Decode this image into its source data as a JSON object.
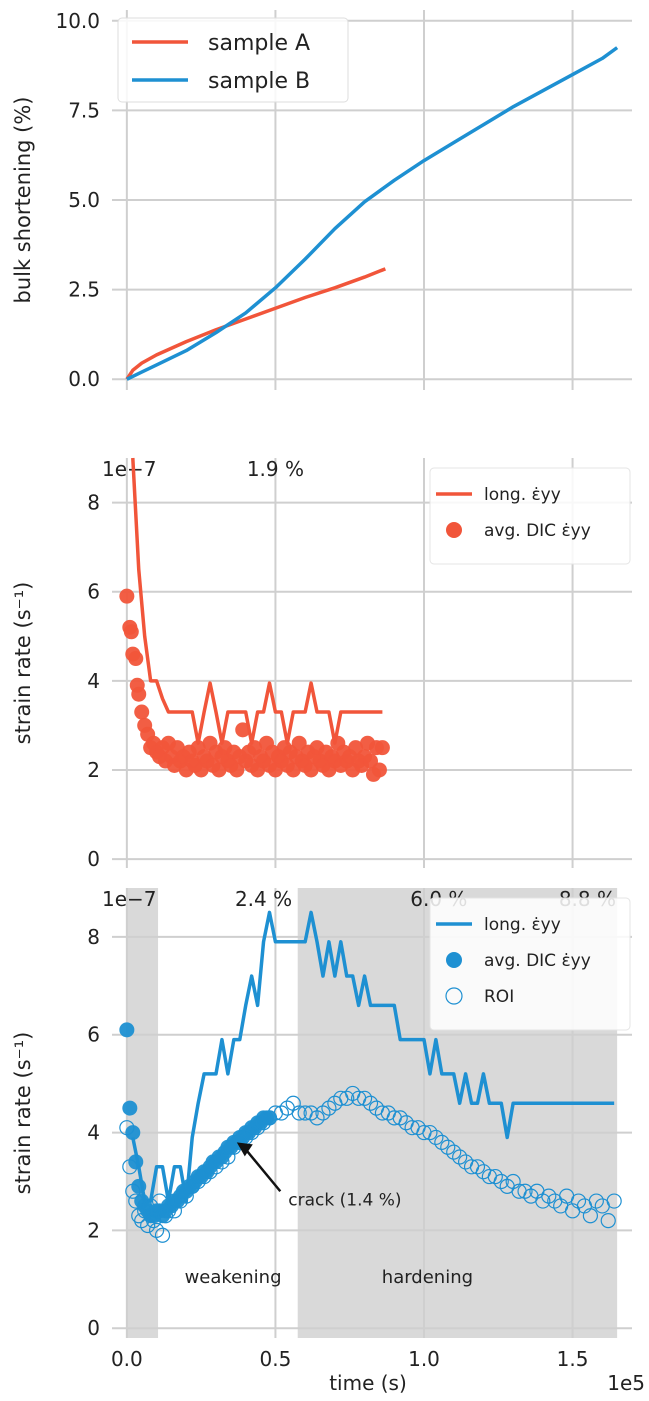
{
  "colors": {
    "sampleA": "#f1553a",
    "sampleB": "#1e90d2",
    "grid": "#cfcfcf",
    "shade": "#d9d9d9",
    "text": "#222222"
  },
  "shared_x": {
    "label": "time (s)",
    "offset_text": "1e5",
    "ticks": [
      0,
      0.5,
      1.0,
      1.5
    ],
    "tick_labels": [
      "0.0",
      "0.5",
      "1.0",
      "1.5"
    ],
    "xlim": [
      -0.05,
      1.7
    ]
  },
  "chart_data": [
    {
      "type": "line",
      "ylabel": "bulk shortening (%)",
      "ylim": [
        -0.3,
        10.3
      ],
      "yticks": [
        0,
        2.5,
        5.0,
        7.5,
        10.0
      ],
      "ytick_labels": [
        "0.0",
        "2.5",
        "5.0",
        "7.5",
        "10.0"
      ],
      "grid": true,
      "legend": "top-left",
      "series": [
        {
          "name": "sample A",
          "color_key": "sampleA",
          "x": [
            0,
            0.02,
            0.05,
            0.1,
            0.2,
            0.3,
            0.4,
            0.5,
            0.6,
            0.7,
            0.8,
            0.87
          ],
          "y": [
            0,
            0.25,
            0.45,
            0.68,
            1.05,
            1.38,
            1.68,
            1.98,
            2.28,
            2.55,
            2.85,
            3.08
          ]
        },
        {
          "name": "sample B",
          "color_key": "sampleB",
          "x": [
            0,
            0.05,
            0.1,
            0.2,
            0.3,
            0.4,
            0.5,
            0.6,
            0.7,
            0.8,
            0.9,
            1.0,
            1.1,
            1.2,
            1.3,
            1.4,
            1.5,
            1.6,
            1.65
          ],
          "y": [
            0,
            0.2,
            0.4,
            0.8,
            1.3,
            1.85,
            2.55,
            3.35,
            4.2,
            4.95,
            5.55,
            6.1,
            6.6,
            7.1,
            7.6,
            8.05,
            8.5,
            8.95,
            9.25
          ]
        }
      ]
    },
    {
      "type": "line",
      "ylabel": "strain rate (s⁻¹)",
      "offset_text": "1e−7",
      "ylim": [
        -0.2,
        9.0
      ],
      "yticks": [
        0,
        2,
        4,
        6,
        8
      ],
      "ytick_labels": [
        "0",
        "2",
        "4",
        "6",
        "8"
      ],
      "grid": true,
      "legend": "top-right",
      "annotations": [
        {
          "text": "1.9 %",
          "x": 0.5,
          "color_key": "sampleA"
        }
      ],
      "series": [
        {
          "name": "long. ε̇yy",
          "kind": "line",
          "color_key": "sampleA",
          "x": [
            0.02,
            0.04,
            0.06,
            0.08,
            0.1,
            0.12,
            0.14,
            0.16,
            0.18,
            0.2,
            0.22,
            0.24,
            0.26,
            0.28,
            0.3,
            0.32,
            0.34,
            0.36,
            0.38,
            0.4,
            0.42,
            0.44,
            0.46,
            0.48,
            0.5,
            0.52,
            0.54,
            0.56,
            0.58,
            0.6,
            0.62,
            0.64,
            0.66,
            0.68,
            0.7,
            0.72,
            0.74,
            0.76,
            0.78,
            0.8,
            0.82,
            0.84,
            0.86
          ],
          "y": [
            9.0,
            6.5,
            5.0,
            4.0,
            4.0,
            3.6,
            3.3,
            3.3,
            3.3,
            3.3,
            3.3,
            2.6,
            3.3,
            3.95,
            3.3,
            2.6,
            3.3,
            3.3,
            3.3,
            3.3,
            2.6,
            3.3,
            3.3,
            3.95,
            3.3,
            3.3,
            2.6,
            3.3,
            3.3,
            3.3,
            3.95,
            3.3,
            3.3,
            3.3,
            2.6,
            3.3,
            3.3,
            3.3,
            3.3,
            3.3,
            3.3,
            3.3,
            3.3
          ]
        },
        {
          "name": "avg. DIC ε̇yy",
          "kind": "scatter",
          "color_key": "sampleA",
          "x": [
            0.0,
            0.01,
            0.015,
            0.02,
            0.03,
            0.035,
            0.04,
            0.05,
            0.06,
            0.07,
            0.08,
            0.09,
            0.1,
            0.11,
            0.12,
            0.13,
            0.14,
            0.15,
            0.16,
            0.17,
            0.18,
            0.19,
            0.2,
            0.21,
            0.22,
            0.23,
            0.24,
            0.25,
            0.26,
            0.27,
            0.28,
            0.29,
            0.3,
            0.31,
            0.32,
            0.33,
            0.34,
            0.35,
            0.36,
            0.37,
            0.38,
            0.39,
            0.4,
            0.41,
            0.42,
            0.43,
            0.44,
            0.45,
            0.46,
            0.47,
            0.48,
            0.49,
            0.5,
            0.51,
            0.52,
            0.53,
            0.54,
            0.55,
            0.56,
            0.57,
            0.58,
            0.59,
            0.6,
            0.61,
            0.62,
            0.63,
            0.64,
            0.65,
            0.66,
            0.67,
            0.68,
            0.69,
            0.7,
            0.71,
            0.72,
            0.73,
            0.74,
            0.75,
            0.76,
            0.77,
            0.78,
            0.79,
            0.8,
            0.81,
            0.82,
            0.83,
            0.84,
            0.85,
            0.86
          ],
          "y": [
            5.9,
            5.2,
            5.1,
            4.6,
            4.5,
            3.9,
            3.7,
            3.3,
            3.0,
            2.8,
            2.5,
            2.6,
            2.4,
            2.3,
            2.5,
            2.2,
            2.6,
            2.3,
            2.1,
            2.5,
            2.2,
            2.3,
            2.0,
            2.4,
            2.2,
            2.1,
            2.5,
            2.0,
            2.3,
            2.2,
            2.6,
            2.1,
            2.4,
            2.0,
            2.3,
            2.5,
            2.2,
            2.1,
            2.4,
            2.0,
            2.3,
            2.9,
            2.2,
            2.4,
            2.1,
            2.5,
            2.0,
            2.3,
            2.2,
            2.6,
            2.1,
            2.4,
            2.0,
            2.3,
            2.2,
            2.5,
            2.1,
            2.4,
            2.0,
            2.3,
            2.6,
            2.2,
            2.1,
            2.4,
            2.0,
            2.3,
            2.5,
            2.2,
            2.1,
            2.4,
            2.0,
            2.3,
            2.2,
            2.6,
            2.1,
            2.4,
            2.2,
            2.3,
            2.0,
            2.5,
            2.2,
            2.1,
            2.3,
            2.6,
            2.2,
            1.9,
            2.5,
            2.0,
            2.5
          ]
        }
      ]
    },
    {
      "type": "line",
      "ylabel": "strain rate (s⁻¹)",
      "offset_text": "1e−7",
      "ylim": [
        -0.2,
        9.0
      ],
      "yticks": [
        0,
        2,
        4,
        6,
        8
      ],
      "ytick_labels": [
        "0",
        "2",
        "4",
        "6",
        "8"
      ],
      "grid": true,
      "legend": "top-right",
      "shaded_regions": [
        {
          "x0": 0.0,
          "x1": 0.105,
          "label": "weakening"
        },
        {
          "x0": 0.575,
          "x1": 1.65,
          "label": "hardening"
        }
      ],
      "annotations": [
        {
          "text": "2.4 %",
          "x": 0.46,
          "color_key": "sampleB"
        },
        {
          "text": "6.0 %",
          "x": 1.05,
          "color_key": "sampleB"
        },
        {
          "text": "8.8 %",
          "x": 1.55,
          "color_key": "sampleB"
        },
        {
          "text": "crack (1.4 %)",
          "x": 0.37,
          "y": 3.8,
          "text_x": 0.55,
          "text_y": 2.8
        }
      ],
      "series": [
        {
          "name": "long. ε̇yy",
          "kind": "line",
          "color_key": "sampleB",
          "x": [
            0.02,
            0.04,
            0.06,
            0.08,
            0.1,
            0.12,
            0.14,
            0.16,
            0.18,
            0.2,
            0.22,
            0.24,
            0.26,
            0.28,
            0.3,
            0.32,
            0.34,
            0.36,
            0.38,
            0.4,
            0.42,
            0.44,
            0.46,
            0.48,
            0.5,
            0.52,
            0.54,
            0.56,
            0.58,
            0.6,
            0.62,
            0.64,
            0.66,
            0.68,
            0.7,
            0.72,
            0.74,
            0.76,
            0.78,
            0.8,
            0.82,
            0.84,
            0.86,
            0.88,
            0.9,
            0.92,
            0.94,
            0.96,
            0.98,
            1.0,
            1.02,
            1.04,
            1.06,
            1.08,
            1.1,
            1.12,
            1.14,
            1.16,
            1.18,
            1.2,
            1.22,
            1.24,
            1.26,
            1.28,
            1.3,
            1.32,
            1.34,
            1.36,
            1.38,
            1.4,
            1.42,
            1.44,
            1.46,
            1.48,
            1.5,
            1.52,
            1.54,
            1.56,
            1.58,
            1.6,
            1.62,
            1.64
          ],
          "y": [
            3.9,
            3.3,
            2.6,
            2.6,
            3.3,
            3.3,
            2.6,
            3.3,
            3.3,
            2.6,
            3.9,
            4.6,
            5.2,
            5.2,
            5.2,
            5.9,
            5.2,
            5.9,
            5.9,
            6.6,
            7.2,
            6.6,
            7.9,
            8.5,
            7.9,
            7.9,
            7.9,
            7.9,
            7.9,
            7.9,
            8.5,
            7.9,
            7.2,
            7.9,
            7.2,
            7.9,
            7.2,
            7.2,
            6.6,
            7.2,
            6.6,
            6.6,
            6.6,
            6.6,
            6.6,
            5.9,
            5.9,
            5.9,
            5.9,
            5.9,
            5.2,
            5.9,
            5.2,
            5.2,
            5.2,
            4.6,
            5.2,
            4.6,
            4.6,
            5.2,
            4.6,
            4.6,
            4.6,
            3.9,
            4.6,
            4.6,
            4.6,
            4.6,
            4.6,
            4.6,
            4.6,
            4.6,
            4.6,
            4.6,
            4.6,
            4.6,
            4.6,
            4.6,
            4.6,
            4.6,
            4.6,
            4.6
          ]
        },
        {
          "name": "avg. DIC ε̇yy",
          "kind": "scatter",
          "color_key": "sampleB",
          "x": [
            0.0,
            0.01,
            0.02,
            0.03,
            0.04,
            0.05,
            0.06,
            0.07,
            0.08,
            0.09,
            0.1,
            0.11,
            0.12,
            0.13,
            0.14,
            0.15,
            0.16,
            0.17,
            0.18,
            0.19,
            0.2,
            0.21,
            0.22,
            0.23,
            0.24,
            0.25,
            0.26,
            0.27,
            0.28,
            0.29,
            0.3,
            0.31,
            0.32,
            0.33,
            0.34,
            0.35,
            0.36,
            0.37,
            0.38,
            0.39,
            0.4,
            0.41,
            0.42,
            0.43,
            0.44,
            0.45,
            0.46,
            0.47,
            0.48
          ],
          "y": [
            6.1,
            4.5,
            4.0,
            3.4,
            2.9,
            2.6,
            2.5,
            2.4,
            2.3,
            2.3,
            2.4,
            2.4,
            2.3,
            2.4,
            2.5,
            2.5,
            2.6,
            2.6,
            2.7,
            2.8,
            2.8,
            2.9,
            2.9,
            3.0,
            3.1,
            3.1,
            3.2,
            3.2,
            3.3,
            3.4,
            3.4,
            3.5,
            3.5,
            3.6,
            3.7,
            3.7,
            3.8,
            3.8,
            3.9,
            3.9,
            4.0,
            4.0,
            4.1,
            4.1,
            4.2,
            4.2,
            4.3,
            4.3,
            4.3
          ]
        },
        {
          "name": "ROI",
          "kind": "scatter-open",
          "color_key": "sampleB",
          "x": [
            0.0,
            0.01,
            0.02,
            0.03,
            0.04,
            0.05,
            0.06,
            0.07,
            0.08,
            0.09,
            0.1,
            0.11,
            0.12,
            0.13,
            0.14,
            0.16,
            0.18,
            0.2,
            0.22,
            0.24,
            0.26,
            0.28,
            0.3,
            0.32,
            0.34,
            0.36,
            0.38,
            0.4,
            0.42,
            0.44,
            0.46,
            0.48,
            0.5,
            0.52,
            0.54,
            0.56,
            0.58,
            0.6,
            0.62,
            0.64,
            0.66,
            0.68,
            0.7,
            0.72,
            0.74,
            0.76,
            0.78,
            0.8,
            0.82,
            0.84,
            0.86,
            0.88,
            0.9,
            0.92,
            0.94,
            0.96,
            0.98,
            1.0,
            1.02,
            1.04,
            1.06,
            1.08,
            1.1,
            1.12,
            1.14,
            1.16,
            1.18,
            1.2,
            1.22,
            1.24,
            1.26,
            1.28,
            1.3,
            1.32,
            1.34,
            1.36,
            1.38,
            1.4,
            1.42,
            1.44,
            1.46,
            1.48,
            1.5,
            1.52,
            1.54,
            1.56,
            1.58,
            1.6,
            1.62,
            1.64
          ],
          "y": [
            4.1,
            3.3,
            2.8,
            2.6,
            2.3,
            2.2,
            2.4,
            2.1,
            2.5,
            2.2,
            2.0,
            2.6,
            1.9,
            2.3,
            2.4,
            2.4,
            2.6,
            2.7,
            2.9,
            3.0,
            3.1,
            3.2,
            3.3,
            3.4,
            3.5,
            3.7,
            3.8,
            3.9,
            4.0,
            4.1,
            4.2,
            4.3,
            4.4,
            4.4,
            4.5,
            4.6,
            4.4,
            4.4,
            4.4,
            4.3,
            4.4,
            4.5,
            4.6,
            4.7,
            4.7,
            4.8,
            4.7,
            4.7,
            4.6,
            4.5,
            4.4,
            4.4,
            4.3,
            4.3,
            4.2,
            4.1,
            4.1,
            4.0,
            4.0,
            3.9,
            3.8,
            3.7,
            3.6,
            3.5,
            3.4,
            3.3,
            3.3,
            3.2,
            3.1,
            3.1,
            3.0,
            2.9,
            3.0,
            2.8,
            2.8,
            2.7,
            2.8,
            2.6,
            2.7,
            2.6,
            2.5,
            2.7,
            2.4,
            2.6,
            2.5,
            2.3,
            2.6,
            2.5,
            2.2,
            2.6
          ]
        }
      ]
    }
  ]
}
